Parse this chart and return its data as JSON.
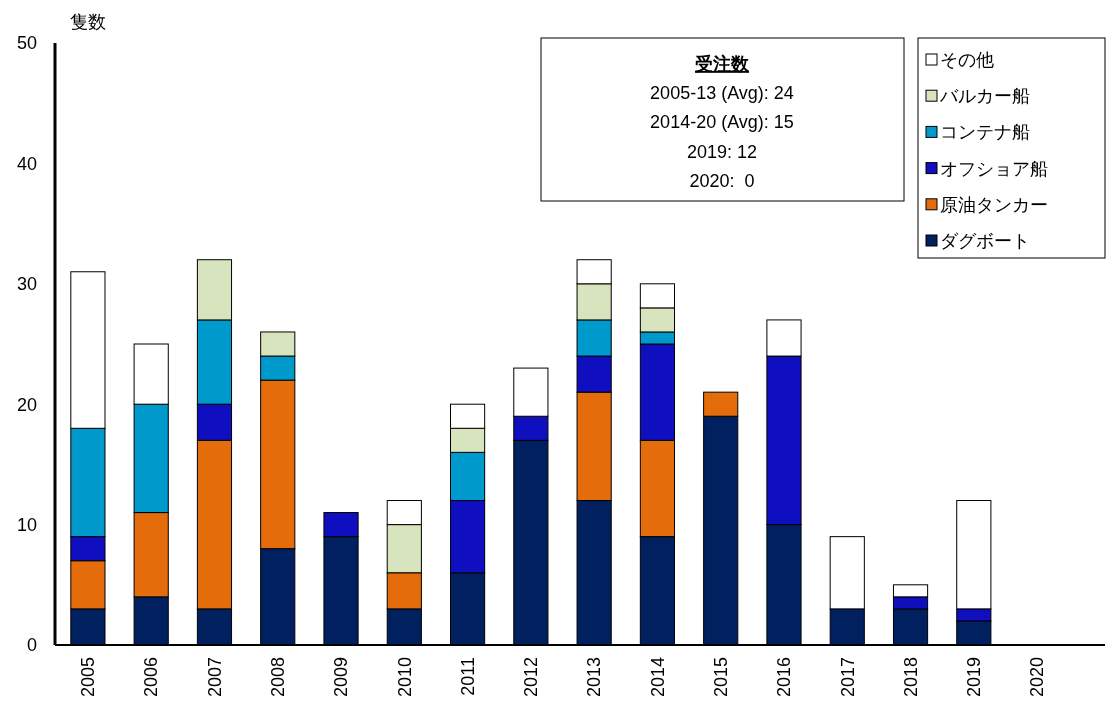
{
  "chart_data": {
    "type": "bar",
    "stacked": true,
    "ylabel": "隻数",
    "categories": [
      "2005",
      "2006",
      "2007",
      "2008",
      "2009",
      "2010",
      "2011",
      "2012",
      "2013",
      "2014",
      "2015",
      "2016",
      "2017",
      "2018",
      "2019",
      "2020"
    ],
    "ylim": [
      0,
      50
    ],
    "yticks": [
      0,
      10,
      20,
      30,
      40,
      50
    ],
    "grid": false,
    "legend": "top right",
    "annotations": [
      "受注数",
      "2005-13 (Avg): 24",
      "2014-20 (Avg): 15",
      "2019: 12",
      "2020:  0"
    ],
    "series": [
      {
        "name": "ダグボート",
        "color": "#002060",
        "values": [
          3,
          4,
          3,
          8,
          9,
          3,
          6,
          17,
          12,
          9,
          19,
          10,
          3,
          3,
          2,
          0
        ]
      },
      {
        "name": "原油タンカー",
        "color": "#e46c0a",
        "values": [
          4,
          7,
          14,
          14,
          0,
          3,
          0,
          0,
          9,
          8,
          2,
          0,
          0,
          0,
          0,
          0
        ]
      },
      {
        "name": "オフショア船",
        "color": "#0f0fc0",
        "values": [
          2,
          0,
          3,
          0,
          2,
          0,
          6,
          2,
          3,
          8,
          0,
          14,
          0,
          1,
          1,
          0
        ]
      },
      {
        "name": "コンテナ船",
        "color": "#0099cc",
        "values": [
          9,
          9,
          7,
          2,
          0,
          0,
          4,
          0,
          3,
          1,
          0,
          0,
          0,
          0,
          0,
          0
        ]
      },
      {
        "name": "バルカー船",
        "color": "#d7e4bd",
        "values": [
          0,
          0,
          5,
          2,
          0,
          4,
          2,
          0,
          3,
          2,
          0,
          0,
          0,
          0,
          0,
          0
        ]
      },
      {
        "name": "その他",
        "color": "#ffffff",
        "values": [
          13,
          5,
          0,
          0,
          0,
          2,
          2,
          4,
          2,
          2,
          0,
          3,
          6,
          1,
          9,
          0
        ]
      }
    ]
  }
}
